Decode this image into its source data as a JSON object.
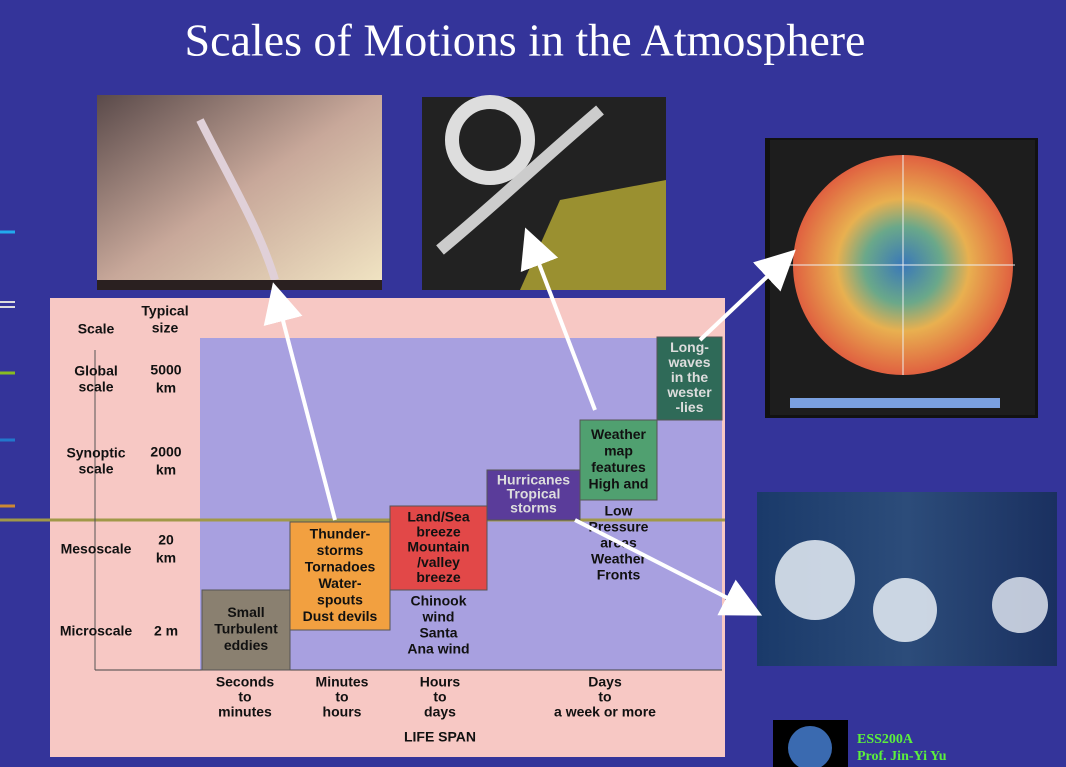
{
  "slide": {
    "title": "Scales of Motions in the Atmosphere",
    "diagram": {
      "headers": {
        "scale": "Scale",
        "size": [
          "Typical",
          "size"
        ]
      },
      "rows": [
        {
          "scale": [
            "Global",
            "scale"
          ],
          "size": [
            "5000",
            "km"
          ]
        },
        {
          "scale": [
            "Synoptic",
            "scale"
          ],
          "size": [
            "2000",
            "km"
          ]
        },
        {
          "scale": [
            "Mesoscale"
          ],
          "size": [
            "20",
            "km"
          ]
        },
        {
          "scale": [
            "Microscale"
          ],
          "size": [
            "2 m"
          ]
        }
      ],
      "boxes": [
        {
          "lines": [
            "Small",
            "Turbulent",
            "eddies"
          ]
        },
        {
          "lines": [
            "Thunder-",
            "storms",
            "Tornadoes",
            "Water-",
            "spouts",
            "Dust devils"
          ]
        },
        {
          "lines": [
            "Land/Sea",
            "breeze",
            "Mountain",
            "/valley",
            "breeze"
          ],
          "below": [
            "Chinook",
            "wind",
            "Santa",
            "Ana wind"
          ]
        },
        {
          "lines": [
            "Hurricanes",
            "Tropical",
            "storms"
          ]
        },
        {
          "lines": [
            "Weather",
            "map",
            "features",
            "High and"
          ],
          "below": [
            "Low",
            "Pressure",
            "areas",
            "Weather",
            "Fronts"
          ]
        },
        {
          "lines": [
            "Long-",
            "waves",
            "in the",
            "wester",
            "-lies"
          ]
        }
      ],
      "spans": [
        [
          "Seconds",
          "to",
          "minutes"
        ],
        [
          "Minutes",
          "to",
          "hours"
        ],
        [
          "Hours",
          "to",
          "days"
        ],
        [
          "Days",
          "to",
          "a week or more"
        ]
      ],
      "axis_label": "LIFE SPAN"
    },
    "footer": [
      "ESS200A",
      "Prof. Jin-Yi Yu"
    ]
  }
}
